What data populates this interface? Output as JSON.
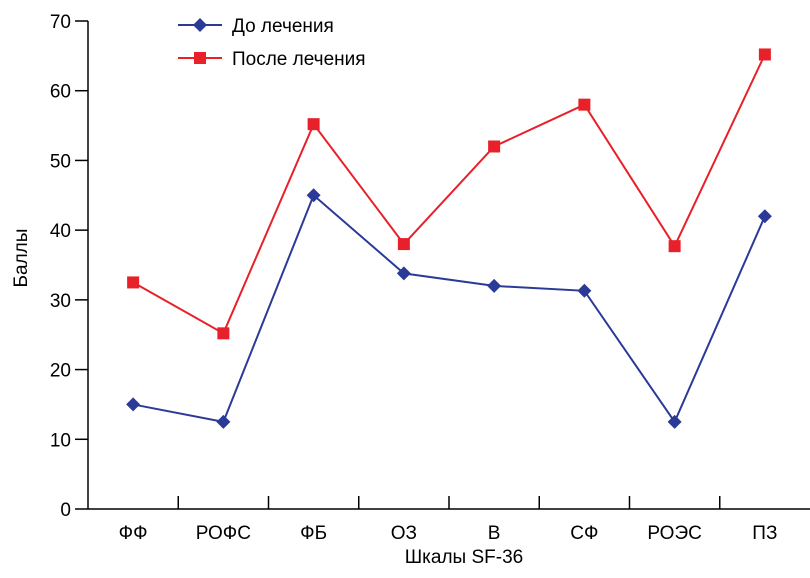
{
  "chart_data": {
    "type": "line",
    "categories": [
      "ФФ",
      "РОФС",
      "ФБ",
      "ОЗ",
      "В",
      "СФ",
      "РОЭС",
      "ПЗ"
    ],
    "series": [
      {
        "name": "До лечения",
        "color": "#2b3a97",
        "marker": "diamond",
        "values": [
          15,
          12.5,
          45,
          33.8,
          32,
          31.3,
          12.5,
          42
        ]
      },
      {
        "name": "После лечения",
        "color": "#e8202a",
        "marker": "square",
        "values": [
          32.5,
          25.2,
          55.2,
          38,
          52,
          58,
          37.7,
          65.2
        ]
      }
    ],
    "xlabel": "Шкалы SF-36",
    "ylabel": "Баллы",
    "ylim": [
      0,
      70
    ],
    "yticks": [
      0,
      10,
      20,
      30,
      40,
      50,
      60,
      70
    ],
    "grid": false,
    "legend_position": "top-left"
  }
}
